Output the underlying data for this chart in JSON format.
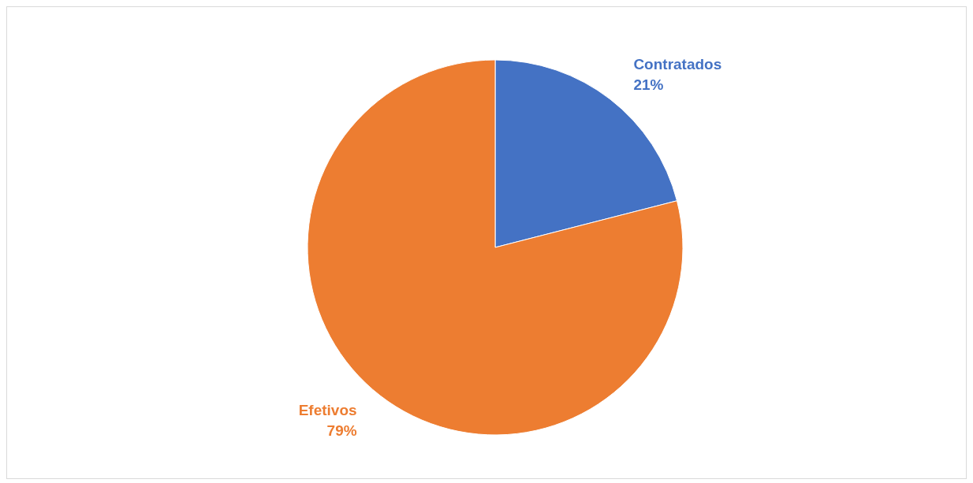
{
  "chart_data": {
    "type": "pie",
    "categories": [
      "Contratados",
      "Efetivos"
    ],
    "values": [
      21,
      79
    ],
    "colors": [
      "#4472c4",
      "#ed7d31"
    ],
    "value_labels": [
      "21%",
      "79%"
    ],
    "legend": false
  }
}
